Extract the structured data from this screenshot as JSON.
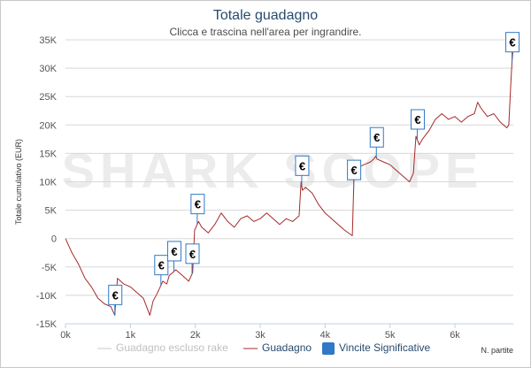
{
  "chart_data": {
    "type": "line",
    "title": "Totale guadagno",
    "subtitle": "Clicca e trascina nell'area per ingrandire.",
    "ylabel": "Totale cumulativo (EUR)",
    "xlabel": "N. partite",
    "watermark": "SHARK SCOPE",
    "xlim": [
      0,
      6900
    ],
    "ylim": [
      -15000,
      35000
    ],
    "x_ticks": [
      0,
      1000,
      2000,
      3000,
      4000,
      5000,
      6000
    ],
    "x_tick_labels": [
      "0k",
      "1k",
      "2k",
      "3k",
      "4k",
      "5k",
      "6k"
    ],
    "y_ticks": [
      -15000,
      -10000,
      -5000,
      0,
      5000,
      10000,
      15000,
      20000,
      25000,
      30000,
      35000
    ],
    "y_tick_labels": [
      "-15K",
      "-10K",
      "-5K",
      "0",
      "5K",
      "10K",
      "15K",
      "20K",
      "25K",
      "30K",
      "35K"
    ],
    "grid": true,
    "legend_position": "bottom",
    "line_color": "#a52a2a",
    "flag_color": "#3178c6",
    "series": [
      {
        "name": "Guadagno",
        "x": [
          0,
          100,
          200,
          300,
          400,
          500,
          600,
          700,
          760,
          800,
          900,
          1000,
          1100,
          1200,
          1300,
          1350,
          1420,
          1500,
          1560,
          1600,
          1650,
          1700,
          1800,
          1900,
          1960,
          1990,
          2010,
          2050,
          2100,
          2200,
          2300,
          2400,
          2500,
          2600,
          2700,
          2800,
          2900,
          3000,
          3100,
          3200,
          3300,
          3400,
          3500,
          3600,
          3630,
          3650,
          3700,
          3800,
          3900,
          4000,
          4100,
          4200,
          4300,
          4420,
          4450,
          4480,
          4500,
          4600,
          4700,
          4750,
          4780,
          4800,
          4900,
          5000,
          5100,
          5200,
          5300,
          5360,
          5400,
          5450,
          5500,
          5600,
          5700,
          5800,
          5900,
          6000,
          6100,
          6200,
          6300,
          6350,
          6400,
          6500,
          6600,
          6700,
          6800,
          6830,
          6860,
          6880,
          6900
        ],
        "y": [
          0,
          -2500,
          -4500,
          -7000,
          -8500,
          -10500,
          -11500,
          -12000,
          -13500,
          -7000,
          -8000,
          -8500,
          -9500,
          -10500,
          -13500,
          -11000,
          -9500,
          -7500,
          -8000,
          -6500,
          -6000,
          -5500,
          -6500,
          -7500,
          -6000,
          1500,
          2000,
          3000,
          2000,
          1000,
          2500,
          4500,
          3000,
          2000,
          3500,
          4000,
          3000,
          3500,
          4500,
          3500,
          2500,
          3500,
          3000,
          4000,
          10000,
          8500,
          9000,
          8000,
          6000,
          4500,
          3500,
          2500,
          1500,
          500,
          12500,
          13000,
          12500,
          13000,
          13500,
          14000,
          14500,
          14000,
          13500,
          13000,
          12000,
          11000,
          10000,
          11500,
          18000,
          16500,
          17500,
          19000,
          21000,
          22000,
          21000,
          21500,
          20500,
          21500,
          22000,
          24000,
          23000,
          21500,
          22000,
          20500,
          19500,
          20000,
          27000,
          31000,
          34000
        ]
      },
      {
        "name": "Guadagno escluso rake",
        "x": [],
        "y": []
      }
    ],
    "flags_series": {
      "name": "Vincite Significative",
      "symbol": "€",
      "x": [
        760,
        1470,
        1670,
        1950,
        2030,
        3640,
        4440,
        4790,
        5420,
        6880
      ]
    }
  }
}
